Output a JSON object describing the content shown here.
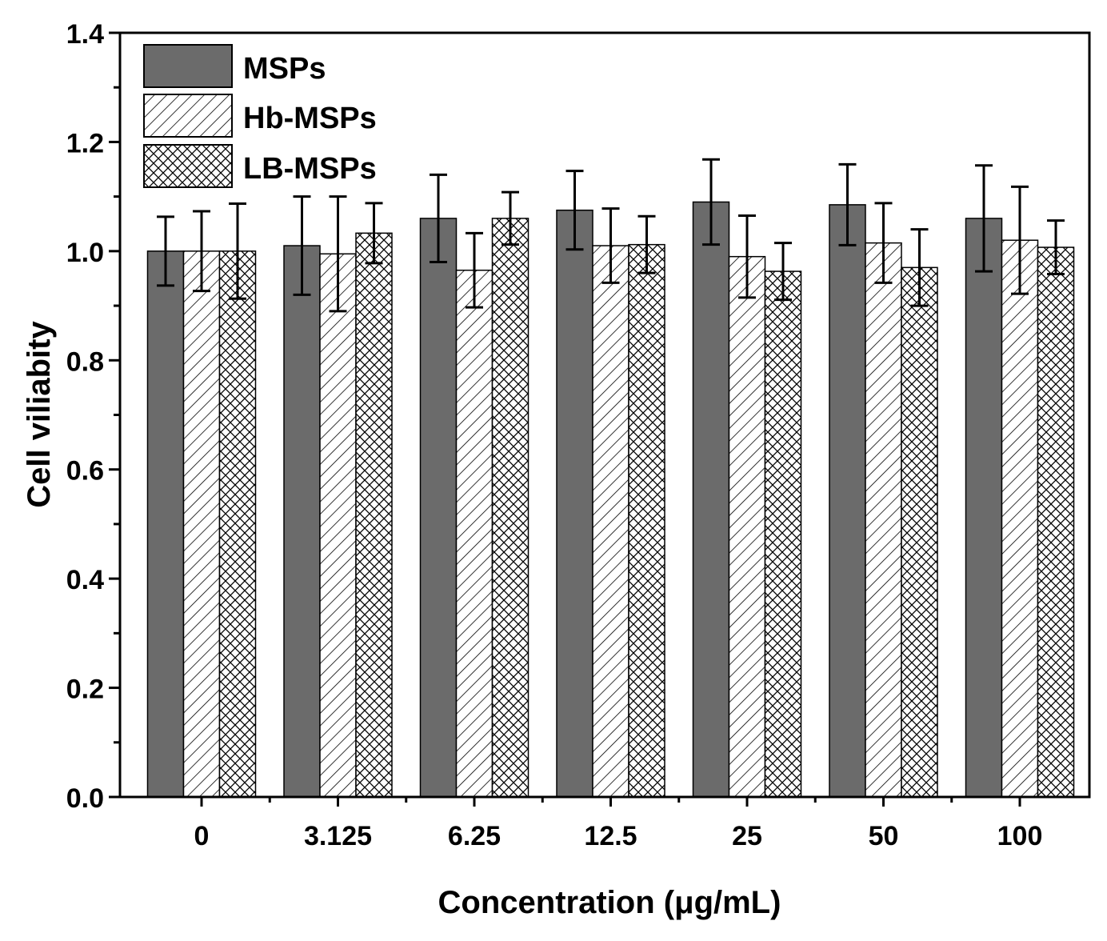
{
  "chart_data": {
    "type": "bar",
    "title": "",
    "xlabel": "Concentration (μg/mL)",
    "ylabel": "Cell viliabity",
    "ylim": [
      0.0,
      1.4
    ],
    "yticks": [
      0.0,
      0.2,
      0.4,
      0.6,
      0.8,
      1.0,
      1.2,
      1.4
    ],
    "ytick_labels": [
      "0.0",
      "0.2",
      "0.4",
      "0.6",
      "0.8",
      "1.0",
      "1.2",
      "1.4"
    ],
    "categories": [
      "0",
      "3.125",
      "6.25",
      "12.5",
      "25",
      "50",
      "100"
    ],
    "legend_position": "top-left",
    "series": [
      {
        "name": "MSPs",
        "pattern": "solid",
        "color": "#6b6b6b",
        "values": [
          1.0,
          1.01,
          1.06,
          1.075,
          1.09,
          1.085,
          1.06
        ],
        "errors": [
          0.063,
          0.09,
          0.08,
          0.072,
          0.078,
          0.074,
          0.097
        ]
      },
      {
        "name": "Hb-MSPs",
        "pattern": "diagonal-hatch",
        "color": "#000000",
        "values": [
          1.0,
          0.995,
          0.965,
          1.01,
          0.99,
          1.015,
          1.02
        ],
        "errors": [
          0.073,
          0.105,
          0.068,
          0.068,
          0.075,
          0.073,
          0.098
        ]
      },
      {
        "name": "LB-MSPs",
        "pattern": "cross-hatch",
        "color": "#000000",
        "values": [
          1.0,
          1.033,
          1.06,
          1.012,
          0.963,
          0.97,
          1.007
        ],
        "errors": [
          0.087,
          0.055,
          0.048,
          0.052,
          0.052,
          0.07,
          0.049
        ]
      }
    ]
  }
}
